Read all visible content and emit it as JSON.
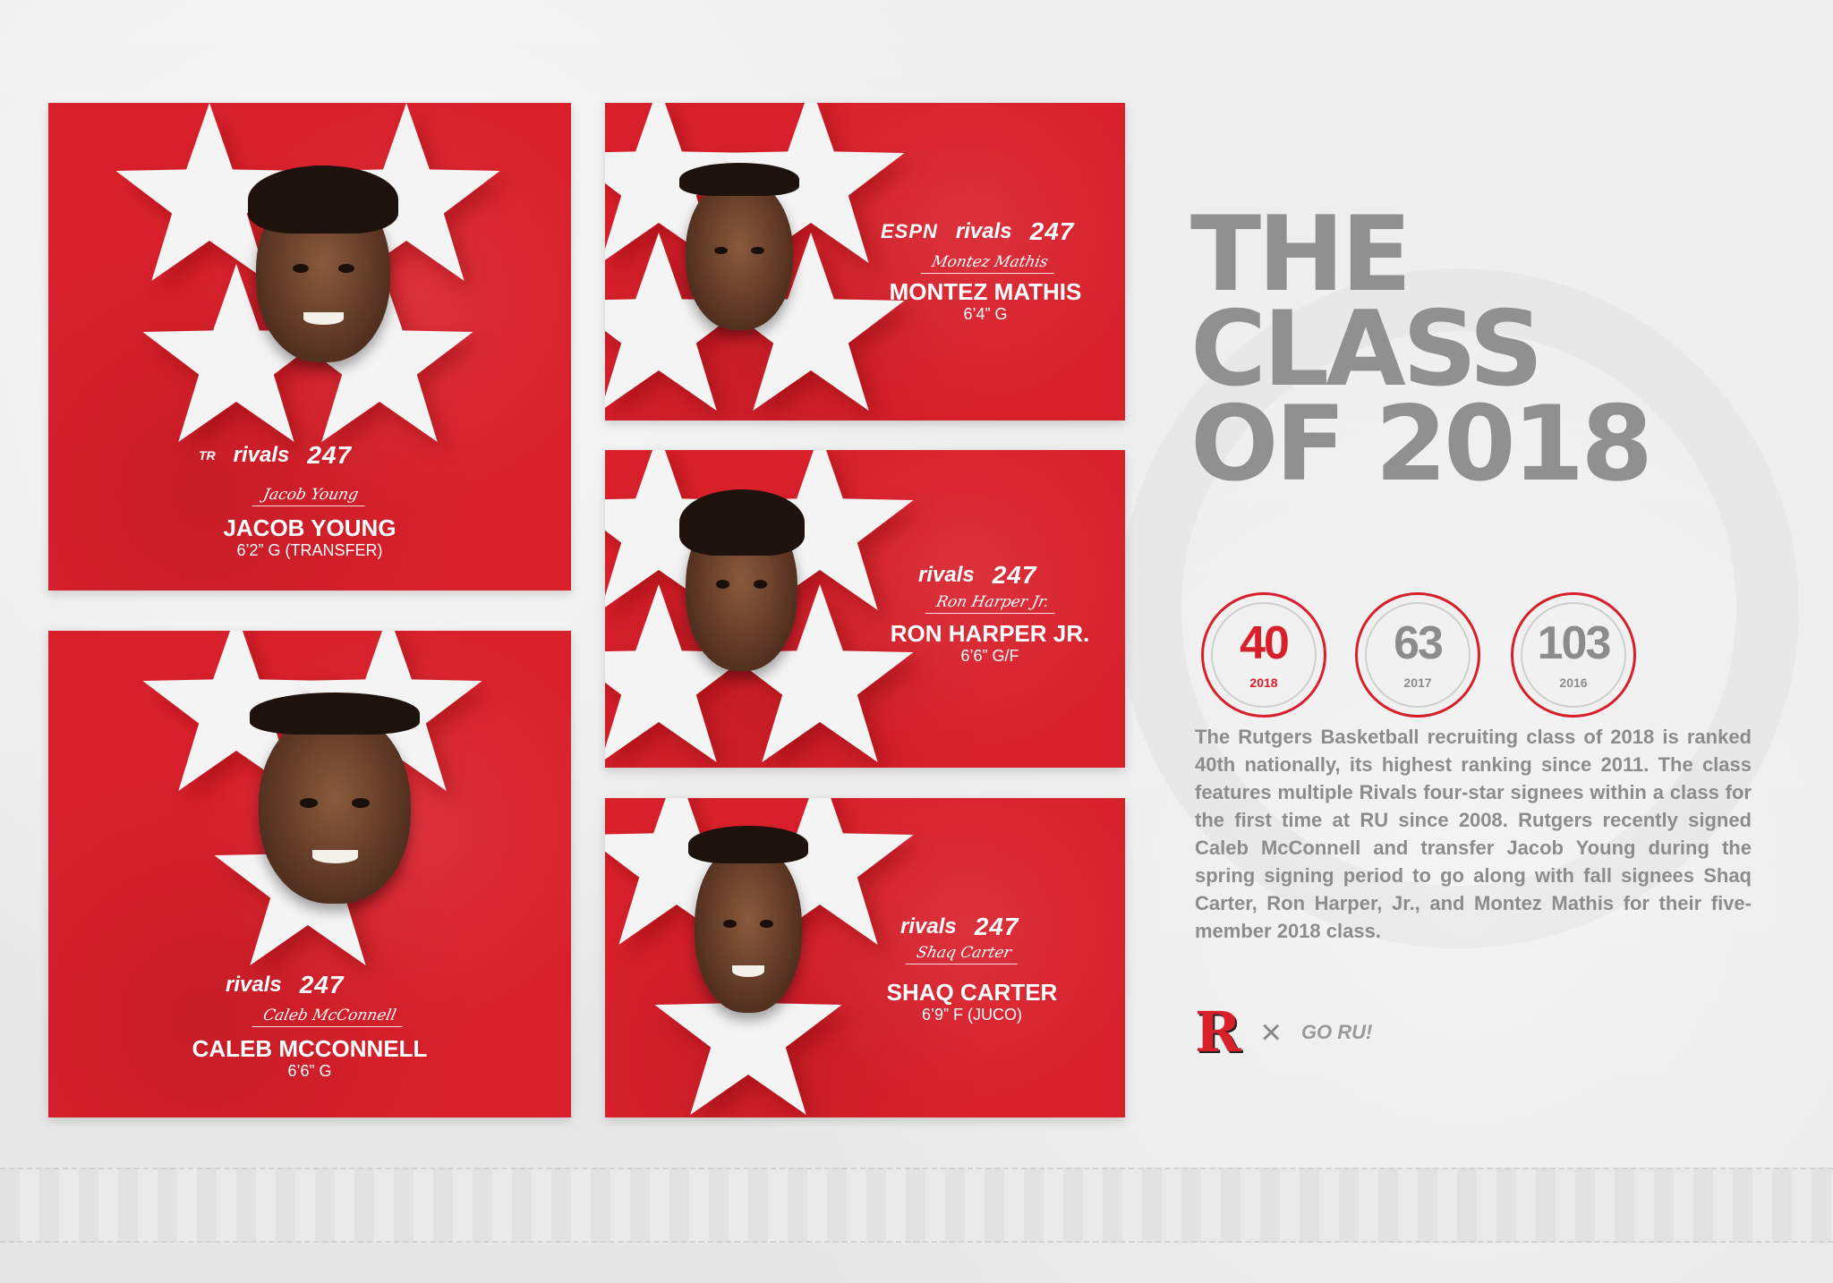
{
  "headline": {
    "line1": "THE",
    "line2": "CLASS",
    "line3": "OF 2018"
  },
  "rankings": [
    {
      "rank": "40",
      "year": "2018",
      "color": "#d8202b"
    },
    {
      "rank": "63",
      "year": "2017",
      "color": "#8c8c8c"
    },
    {
      "rank": "103",
      "year": "2016",
      "color": "#8c8c8c"
    }
  ],
  "description": "The Rutgers Basketball recruiting class of 2018 is ranked 40th nationally, its highest ranking since 2011. The class features multiple Rivals four-star signees within a class for the first time at RU since 2008. Rutgers recently signed Caleb McConnell and transfer Jacob Young during the spring signing period to go along with fall signees Shaq Carter, Ron Harper, Jr., and Montez Mathis for their five-member 2018 class.",
  "logos": {
    "rutgers": "R",
    "separator": "×",
    "goru": "GO RU!"
  },
  "brands": {
    "espn": "ESPN",
    "rivals": "rivals",
    "b247": "247",
    "texas": "TR"
  },
  "players": [
    {
      "name": "JACOB YOUNG",
      "detail": "6’2” G (TRANSFER)",
      "signature": "Jacob Young",
      "brands": [
        "TR",
        "rivals",
        "247"
      ]
    },
    {
      "name": "MONTEZ MATHIS",
      "detail": "6’4” G",
      "signature": "Montez Mathis",
      "brands": [
        "ESPN",
        "rivals",
        "247"
      ]
    },
    {
      "name": "RON HARPER JR.",
      "detail": "6’6” G/F",
      "signature": "Ron Harper Jr.",
      "brands": [
        "rivals",
        "247"
      ]
    },
    {
      "name": "CALEB MCCONNELL",
      "detail": "6’6” G",
      "signature": "Caleb McConnell",
      "brands": [
        "rivals",
        "247"
      ]
    },
    {
      "name": "SHAQ CARTER",
      "detail": "6’9” F (JUCO)",
      "signature": "Shaq Carter",
      "brands": [
        "rivals",
        "247"
      ]
    }
  ],
  "colors": {
    "card_red": "#d8202b",
    "title_gray": "#909090",
    "star_white": "#f4f4f4"
  }
}
